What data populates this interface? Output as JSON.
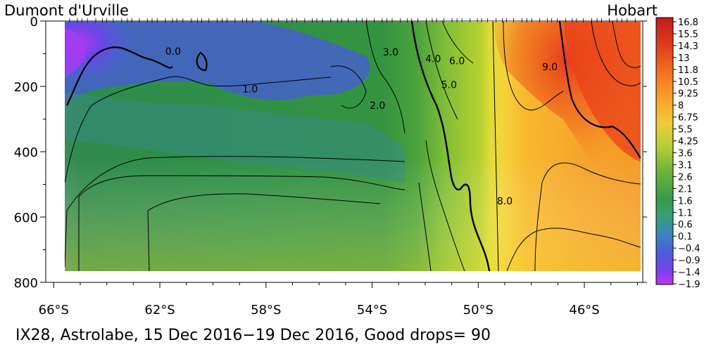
{
  "chart_data": {
    "type": "heatmap",
    "title_left": "Dumont d'Urville",
    "title_right": "Hobart",
    "caption": "IX28, Astrolabe, 15 Dec 2016−19 Dec 2016, Good drops= 90",
    "x_ticks": [
      "66°S",
      "62°S",
      "58°S",
      "54°S",
      "50°S",
      "46°S"
    ],
    "x_tick_values": [
      -66,
      -62,
      -58,
      -54,
      -50,
      -46
    ],
    "xlim": [
      -66.3,
      -43.8
    ],
    "y_ticks": [
      "0",
      "200",
      "400",
      "600",
      "800"
    ],
    "y_tick_values": [
      0,
      200,
      400,
      600,
      800
    ],
    "ylim": [
      0,
      800
    ],
    "y_inverted": true,
    "data_extent": {
      "x": [
        -65.4,
        -44.1
      ],
      "y": [
        0,
        760
      ]
    },
    "colorbar_labels": [
      "16.8",
      "15.5",
      "14.3",
      "13",
      "11.8",
      "10.5",
      "9.25",
      "8",
      "6.75",
      "5.5",
      "4.25",
      "3.6",
      "3.1",
      "2.6",
      "2.1",
      "1.6",
      "1.1",
      "0.6",
      "0.1",
      "−0.4",
      "−0.9",
      "−1.4",
      "−1.9"
    ],
    "colorbar_colors": [
      "#c8201e",
      "#d42a1a",
      "#e0381a",
      "#ea4a1a",
      "#f05c1c",
      "#f46e1e",
      "#f88424",
      "#fa9a28",
      "#fbb22e",
      "#f4c636",
      "#d8d436",
      "#b4d034",
      "#8ec432",
      "#6cb83a",
      "#52ac3e",
      "#3e9c46",
      "#36a06e",
      "#3a8cb0",
      "#4276d4",
      "#4a5ee0",
      "#5a48e6",
      "#8040ea",
      "#b436f0"
    ],
    "contour_labels": [
      {
        "text": "0.0",
        "x": -61.5,
        "y": 92
      },
      {
        "text": "1.0",
        "x": -58.6,
        "y": 208
      },
      {
        "text": "2.0",
        "x": -53.8,
        "y": 258
      },
      {
        "text": "3.0",
        "x": -53.3,
        "y": 95
      },
      {
        "text": "4.0",
        "x": -51.7,
        "y": 115
      },
      {
        "text": "5.0",
        "x": -51.1,
        "y": 195
      },
      {
        "text": "6.0",
        "x": -50.8,
        "y": 122
      },
      {
        "text": "8.0",
        "x": -49.0,
        "y": 550
      },
      {
        "text": "9.0",
        "x": -47.3,
        "y": 140
      }
    ]
  }
}
